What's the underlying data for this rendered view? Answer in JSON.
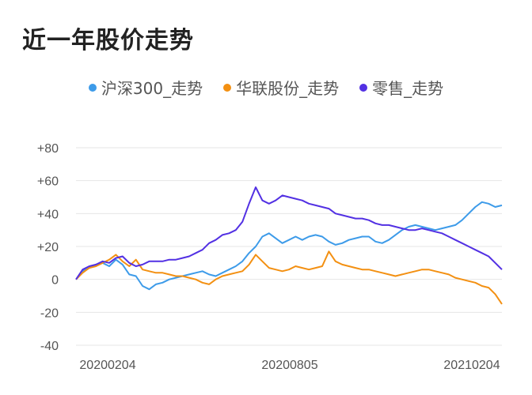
{
  "page_title": "近一年股价走势",
  "chart_data": {
    "type": "line",
    "title": "近一年股价走势",
    "xlabel": "",
    "ylabel": "",
    "x_tick_labels": [
      "20200204",
      "20200805",
      "20210204"
    ],
    "y_ticks": [
      80,
      60,
      40,
      20,
      0,
      -20,
      -40
    ],
    "y_tick_labels": [
      "+80",
      "+60",
      "+40",
      "+20",
      "0",
      "-20",
      "-40"
    ],
    "ylim": [
      -40,
      80
    ],
    "grid": "horizontal",
    "legend_position": "top",
    "series": [
      {
        "name": "沪深300_走势",
        "color": "#3d9be9",
        "values": [
          0,
          5,
          7,
          9,
          10,
          8,
          12,
          9,
          3,
          2,
          -4,
          -6,
          -3,
          -2,
          0,
          1,
          2,
          3,
          4,
          5,
          3,
          2,
          4,
          6,
          8,
          11,
          16,
          20,
          26,
          28,
          25,
          22,
          24,
          26,
          24,
          26,
          27,
          26,
          23,
          21,
          22,
          24,
          25,
          26,
          26,
          23,
          22,
          24,
          27,
          30,
          32,
          33,
          32,
          31,
          30,
          31,
          32,
          33,
          36,
          40,
          44,
          47,
          46,
          44,
          45
        ]
      },
      {
        "name": "华联股份_走势",
        "color": "#f39012",
        "values": [
          0,
          4,
          7,
          8,
          10,
          12,
          15,
          11,
          8,
          12,
          6,
          5,
          4,
          4,
          3,
          2,
          2,
          1,
          0,
          -2,
          -3,
          0,
          2,
          3,
          4,
          5,
          9,
          15,
          11,
          7,
          6,
          5,
          6,
          8,
          7,
          6,
          7,
          8,
          17,
          11,
          9,
          8,
          7,
          6,
          6,
          5,
          4,
          3,
          2,
          3,
          4,
          5,
          6,
          6,
          5,
          4,
          3,
          1,
          0,
          -1,
          -2,
          -4,
          -5,
          -9,
          -15
        ]
      },
      {
        "name": "零售_走势",
        "color": "#5230e3",
        "values": [
          0,
          6,
          8,
          9,
          11,
          10,
          13,
          14,
          10,
          8,
          9,
          11,
          11,
          11,
          12,
          12,
          13,
          14,
          16,
          18,
          22,
          24,
          27,
          28,
          30,
          35,
          46,
          56,
          48,
          46,
          48,
          51,
          50,
          49,
          48,
          46,
          45,
          44,
          43,
          40,
          39,
          38,
          37,
          37,
          36,
          34,
          33,
          33,
          32,
          31,
          30,
          30,
          31,
          30,
          29,
          28,
          26,
          24,
          22,
          20,
          18,
          16,
          14,
          10,
          6
        ]
      }
    ]
  }
}
